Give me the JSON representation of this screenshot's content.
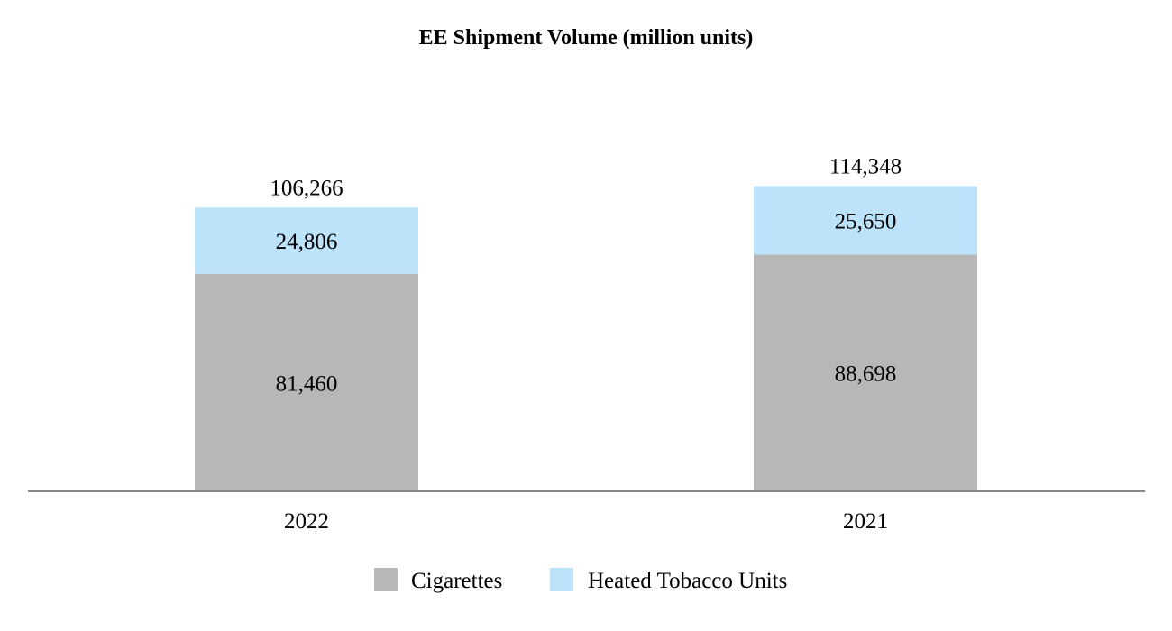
{
  "chart_data": {
    "type": "bar",
    "stacked": true,
    "title": "EE Shipment Volume (million units)",
    "xlabel": "",
    "ylabel": "",
    "categories": [
      "2022",
      "2021"
    ],
    "series": [
      {
        "name": "Cigarettes",
        "values": [
          81460,
          88698
        ],
        "value_labels": [
          "81,460",
          "88,698"
        ],
        "color": "#b7b7b7"
      },
      {
        "name": "Heated Tobacco Units",
        "values": [
          24806,
          25650
        ],
        "value_labels": [
          "24,806",
          "25,650"
        ],
        "color": "#bde3fa"
      }
    ],
    "totals": [
      106266,
      114348
    ],
    "total_labels": [
      "106,266",
      "114,348"
    ],
    "ylim": [
      0,
      130000
    ],
    "grid": false,
    "legend_position": "bottom",
    "axis_color": "#888888"
  }
}
